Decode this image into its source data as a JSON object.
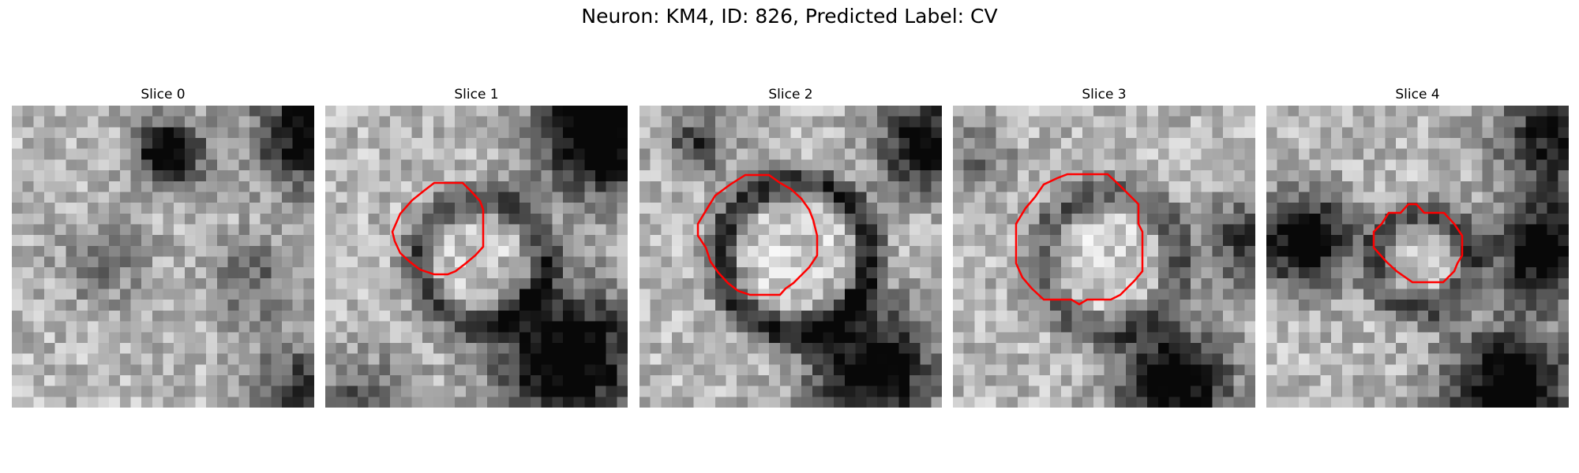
{
  "figure": {
    "suptitle": "Neuron: KM4, ID: 826, Predicted Label: CV",
    "contour_color": "#ff0000",
    "colormap": "grayscale"
  },
  "slices": [
    {
      "title": "Slice 0",
      "has_contour": false
    },
    {
      "title": "Slice 1",
      "has_contour": true
    },
    {
      "title": "Slice 2",
      "has_contour": true
    },
    {
      "title": "Slice 3",
      "has_contour": true
    },
    {
      "title": "Slice 4",
      "has_contour": true
    }
  ]
}
